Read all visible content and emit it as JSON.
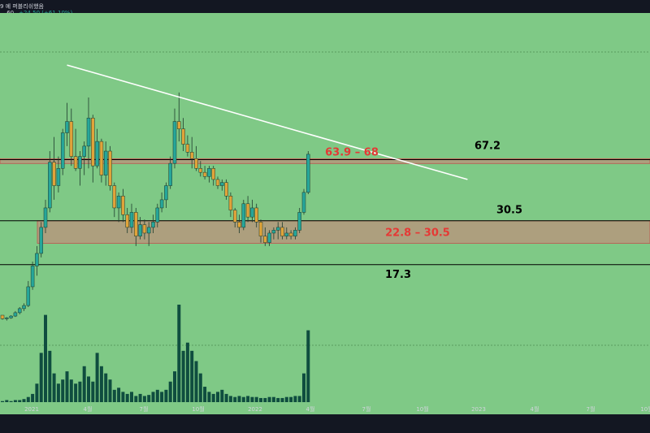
{
  "header": {
    "title": "9 예 퍼블리쉬했음",
    "price": ".60",
    "change": "+24.50 (+61.10%)"
  },
  "colors": {
    "background": "#7fc986",
    "up": "#26a69a",
    "down": "#e0a33a",
    "zone_fill": "#b29a7d",
    "zone_label": "#e53935",
    "volume": "#0f4d3f",
    "trendline": "#ffffff"
  },
  "chart_data": {
    "type": "candlestick",
    "xlabel": "",
    "ylabel": "",
    "y_scale": "log",
    "ylim": [
      5,
      270
    ],
    "x_ticks": [
      "2021",
      "4월",
      "7월",
      "10월",
      "2022",
      "4월",
      "7월",
      "10월",
      "2023",
      "4월",
      "7월",
      "10월"
    ],
    "zones": [
      {
        "label": "63.9 – 68",
        "low": 63.9,
        "high": 68
      },
      {
        "label": "22.8 – 30.5",
        "low": 22.8,
        "high": 30.5
      }
    ],
    "levels": [
      {
        "label": "67.2",
        "value": 67.2
      },
      {
        "label": "30.5",
        "value": 30.5
      },
      {
        "label": "17.3",
        "value": 17.3
      }
    ],
    "trendline": {
      "from": {
        "week": 15,
        "value": 228
      },
      "to": {
        "week": 108,
        "value": 52
      }
    },
    "ohlc": [
      [
        9,
        9,
        8.5,
        8.6
      ],
      [
        8.6,
        8.8,
        8.4,
        8.7
      ],
      [
        8.7,
        9,
        8.6,
        8.9
      ],
      [
        8.9,
        9.5,
        8.8,
        9.3
      ],
      [
        9.3,
        10,
        9.1,
        9.8
      ],
      [
        9.8,
        10.5,
        9.5,
        10.2
      ],
      [
        10.2,
        14,
        10,
        13
      ],
      [
        13,
        18,
        12.5,
        17
      ],
      [
        17,
        22,
        15,
        20
      ],
      [
        20,
        30,
        19,
        28
      ],
      [
        28,
        40,
        26,
        36
      ],
      [
        36,
        75,
        34,
        65
      ],
      [
        65,
        90,
        40,
        48
      ],
      [
        48,
        70,
        44,
        60
      ],
      [
        60,
        100,
        55,
        95
      ],
      [
        95,
        140,
        80,
        110
      ],
      [
        110,
        130,
        62,
        70
      ],
      [
        70,
        100,
        58,
        60
      ],
      [
        60,
        75,
        48,
        70
      ],
      [
        70,
        85,
        55,
        80
      ],
      [
        80,
        150,
        60,
        115
      ],
      [
        115,
        120,
        50,
        62
      ],
      [
        62,
        100,
        60,
        85
      ],
      [
        85,
        88,
        50,
        55
      ],
      [
        55,
        85,
        48,
        75
      ],
      [
        75,
        80,
        45,
        48
      ],
      [
        48,
        50,
        32,
        36
      ],
      [
        36,
        44,
        30,
        42
      ],
      [
        42,
        46,
        30,
        33
      ],
      [
        33,
        36,
        26,
        28
      ],
      [
        28,
        38,
        26,
        34
      ],
      [
        34,
        36,
        22,
        25
      ],
      [
        25,
        32,
        24,
        29
      ],
      [
        29,
        31,
        24,
        26
      ],
      [
        26,
        30,
        22,
        28
      ],
      [
        28,
        33,
        26,
        30
      ],
      [
        30,
        38,
        28,
        36
      ],
      [
        36,
        44,
        34,
        40
      ],
      [
        40,
        50,
        36,
        48
      ],
      [
        48,
        70,
        46,
        64
      ],
      [
        64,
        130,
        60,
        110
      ],
      [
        110,
        160,
        85,
        100
      ],
      [
        100,
        115,
        75,
        82
      ],
      [
        82,
        92,
        70,
        74
      ],
      [
        74,
        90,
        60,
        68
      ],
      [
        68,
        80,
        58,
        60
      ],
      [
        60,
        66,
        54,
        57
      ],
      [
        57,
        62,
        52,
        54
      ],
      [
        54,
        62,
        50,
        60
      ],
      [
        60,
        62,
        48,
        52
      ],
      [
        52,
        54,
        46,
        48
      ],
      [
        48,
        52,
        45,
        50
      ],
      [
        50,
        52,
        40,
        42
      ],
      [
        42,
        44,
        32,
        35
      ],
      [
        35,
        36,
        28,
        30
      ],
      [
        30,
        33,
        26,
        28
      ],
      [
        28,
        40,
        27,
        38
      ],
      [
        38,
        42,
        30,
        32
      ],
      [
        32,
        40,
        30,
        36
      ],
      [
        36,
        38,
        28,
        30
      ],
      [
        30,
        31,
        23,
        25
      ],
      [
        25,
        28,
        22,
        23
      ],
      [
        23,
        27,
        22,
        26
      ],
      [
        26,
        28,
        24,
        27
      ],
      [
        27,
        30,
        24,
        28
      ],
      [
        28,
        30,
        24,
        25
      ],
      [
        25,
        28,
        24,
        26
      ],
      [
        26,
        27,
        24,
        25
      ],
      [
        25,
        28,
        24,
        27
      ],
      [
        27,
        36,
        26,
        34
      ],
      [
        34,
        46,
        33,
        44
      ],
      [
        44,
        75,
        43,
        72
      ]
    ],
    "volume": [
      1,
      2,
      1,
      2,
      2,
      3,
      5,
      8,
      18,
      48,
      85,
      50,
      28,
      18,
      22,
      30,
      22,
      18,
      20,
      35,
      25,
      20,
      48,
      35,
      28,
      22,
      12,
      14,
      10,
      8,
      10,
      6,
      8,
      6,
      7,
      10,
      12,
      10,
      12,
      20,
      30,
      95,
      50,
      58,
      50,
      40,
      28,
      15,
      10,
      8,
      10,
      12,
      8,
      6,
      5,
      6,
      5,
      6,
      5,
      5,
      4,
      4,
      5,
      5,
      4,
      4,
      5,
      5,
      6,
      6,
      28,
      70
    ]
  }
}
